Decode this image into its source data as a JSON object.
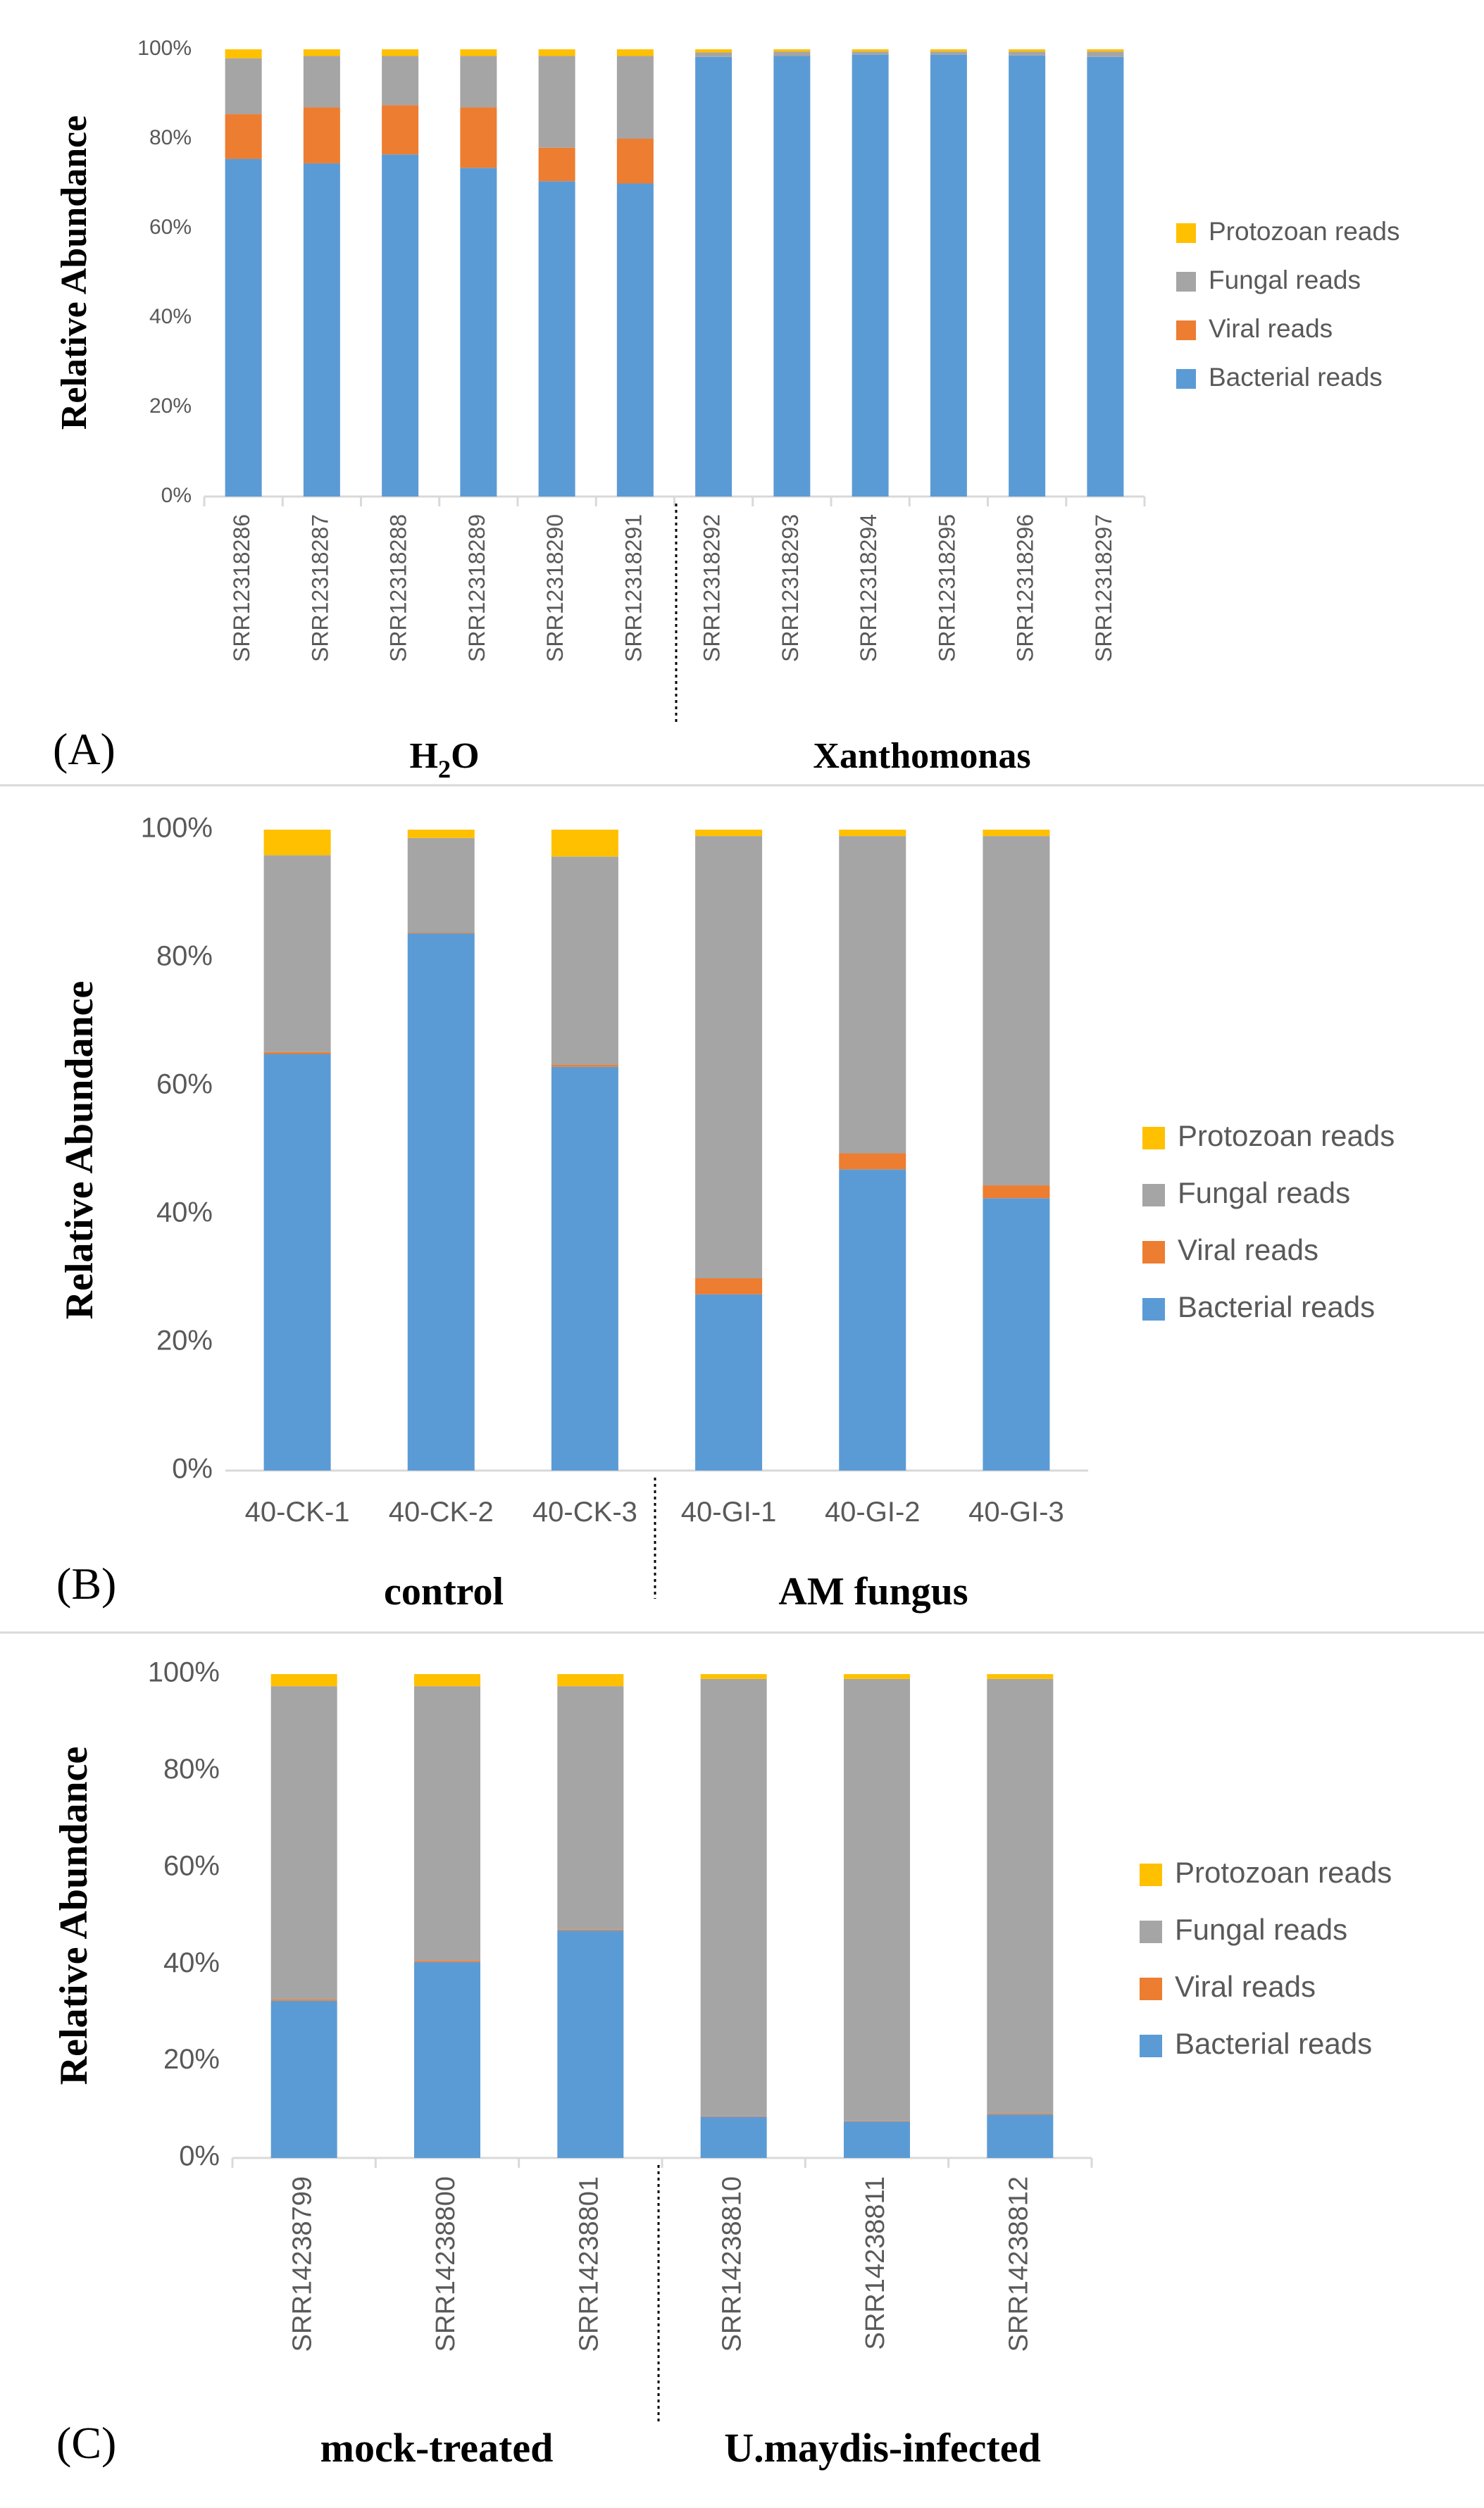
{
  "colors": {
    "bacterial": "#5b9bd5",
    "viral": "#ed7d31",
    "fungal": "#a5a5a5",
    "protozoan": "#ffc000",
    "axis": "#d9d9d9",
    "text": "#595959",
    "divider": "#000000",
    "panel_border": "#d9d9d9"
  },
  "chart_data": [
    {
      "type": "bar",
      "stacked": true,
      "panel_label": "(A)",
      "ylabel": "Relative Abundance",
      "ylim": [
        0,
        100
      ],
      "yticks": [
        "0%",
        "20%",
        "40%",
        "60%",
        "80%",
        "100%"
      ],
      "grid": false,
      "legend_position": "right",
      "legend": [
        "Protozoan reads",
        "Fungal reads",
        "Viral reads",
        "Bacterial reads"
      ],
      "categories": [
        "SRR12318286",
        "SRR12318287",
        "SRR12318288",
        "SRR12318289",
        "SRR12318290",
        "SRR12318291",
        "SRR12318292",
        "SRR12318293",
        "SRR12318294",
        "SRR12318295",
        "SRR12318296",
        "SRR12318297"
      ],
      "series": [
        {
          "name": "Bacterial reads",
          "key": "bacterial",
          "values": [
            75.5,
            74.5,
            76.5,
            73.5,
            70.5,
            70,
            98.3,
            98.5,
            98.8,
            98.8,
            98.6,
            98.3
          ]
        },
        {
          "name": "Viral reads",
          "key": "viral",
          "values": [
            10,
            12.5,
            11,
            13.5,
            7.5,
            10,
            0,
            0,
            0,
            0,
            0,
            0
          ]
        },
        {
          "name": "Fungal reads",
          "key": "fungal",
          "values": [
            12.5,
            11.5,
            11,
            11.5,
            20.5,
            18.5,
            1,
            1,
            0.7,
            0.7,
            0.9,
            1.2
          ]
        },
        {
          "name": "Protozoan reads",
          "key": "protozoan",
          "values": [
            2,
            1.5,
            1.5,
            1.5,
            1.5,
            1.5,
            0.7,
            0.5,
            0.5,
            0.5,
            0.5,
            0.5
          ]
        }
      ],
      "groups": [
        {
          "label_main": "H",
          "label_sub": "2",
          "label_tail": "O"
        },
        {
          "label_main": "Xanthomonas",
          "label_sub": "",
          "label_tail": ""
        }
      ]
    },
    {
      "type": "bar",
      "stacked": true,
      "panel_label": "(B)",
      "ylabel": "Relative Abundance",
      "ylim": [
        0,
        100
      ],
      "yticks": [
        "0%",
        "20%",
        "40%",
        "60%",
        "80%",
        "100%"
      ],
      "grid": false,
      "legend_position": "right",
      "legend": [
        "Protozoan reads",
        "Fungal reads",
        "Viral reads",
        "Bacterial reads"
      ],
      "categories": [
        "40-CK-1",
        "40-CK-2",
        "40-CK-3",
        "40-GI-1",
        "40-GI-2",
        "40-GI-3"
      ],
      "series": [
        {
          "name": "Bacterial reads",
          "key": "bacterial",
          "values": [
            65,
            83.8,
            63,
            27.5,
            47,
            42.5
          ]
        },
        {
          "name": "Viral reads",
          "key": "viral",
          "values": [
            0.3,
            0.1,
            0.3,
            2.5,
            2.5,
            2
          ]
        },
        {
          "name": "Fungal reads",
          "key": "fungal",
          "values": [
            30.7,
            14.8,
            32.5,
            69,
            49.5,
            54.5
          ]
        },
        {
          "name": "Protozoan reads",
          "key": "protozoan",
          "values": [
            4,
            1.3,
            4.2,
            1,
            1,
            1
          ]
        }
      ],
      "groups": [
        {
          "label_main": "control",
          "label_sub": "",
          "label_tail": ""
        },
        {
          "label_main": "AM fungus",
          "label_sub": "",
          "label_tail": ""
        }
      ]
    },
    {
      "type": "bar",
      "stacked": true,
      "panel_label": "(C)",
      "ylabel": "Relative Abundance",
      "ylim": [
        0,
        100
      ],
      "yticks": [
        "0%",
        "20%",
        "40%",
        "60%",
        "80%",
        "100%"
      ],
      "grid": false,
      "legend_position": "right",
      "legend": [
        "Protozoan reads",
        "Fungal reads",
        "Viral reads",
        "Bacterial reads"
      ],
      "categories": [
        "SRR14238799",
        "SRR14238800",
        "SRR14238801",
        "SRR14238810",
        "SRR14238811",
        "SRR14238812"
      ],
      "series": [
        {
          "name": "Bacterial reads",
          "key": "bacterial",
          "values": [
            32.5,
            40.5,
            47,
            8.5,
            7.5,
            9
          ]
        },
        {
          "name": "Viral reads",
          "key": "viral",
          "values": [
            0.3,
            0.3,
            0.2,
            0.1,
            0.1,
            0.2
          ]
        },
        {
          "name": "Fungal reads",
          "key": "fungal",
          "values": [
            64.7,
            56.7,
            50.3,
            90.4,
            91.4,
            89.8
          ]
        },
        {
          "name": "Protozoan reads",
          "key": "protozoan",
          "values": [
            2.5,
            2.5,
            2.5,
            1,
            1,
            1
          ]
        }
      ],
      "groups": [
        {
          "label_main": "mock-treated",
          "label_sub": "",
          "label_tail": ""
        },
        {
          "label_main": "U.maydis-infected",
          "label_sub": "",
          "label_tail": ""
        }
      ]
    }
  ]
}
